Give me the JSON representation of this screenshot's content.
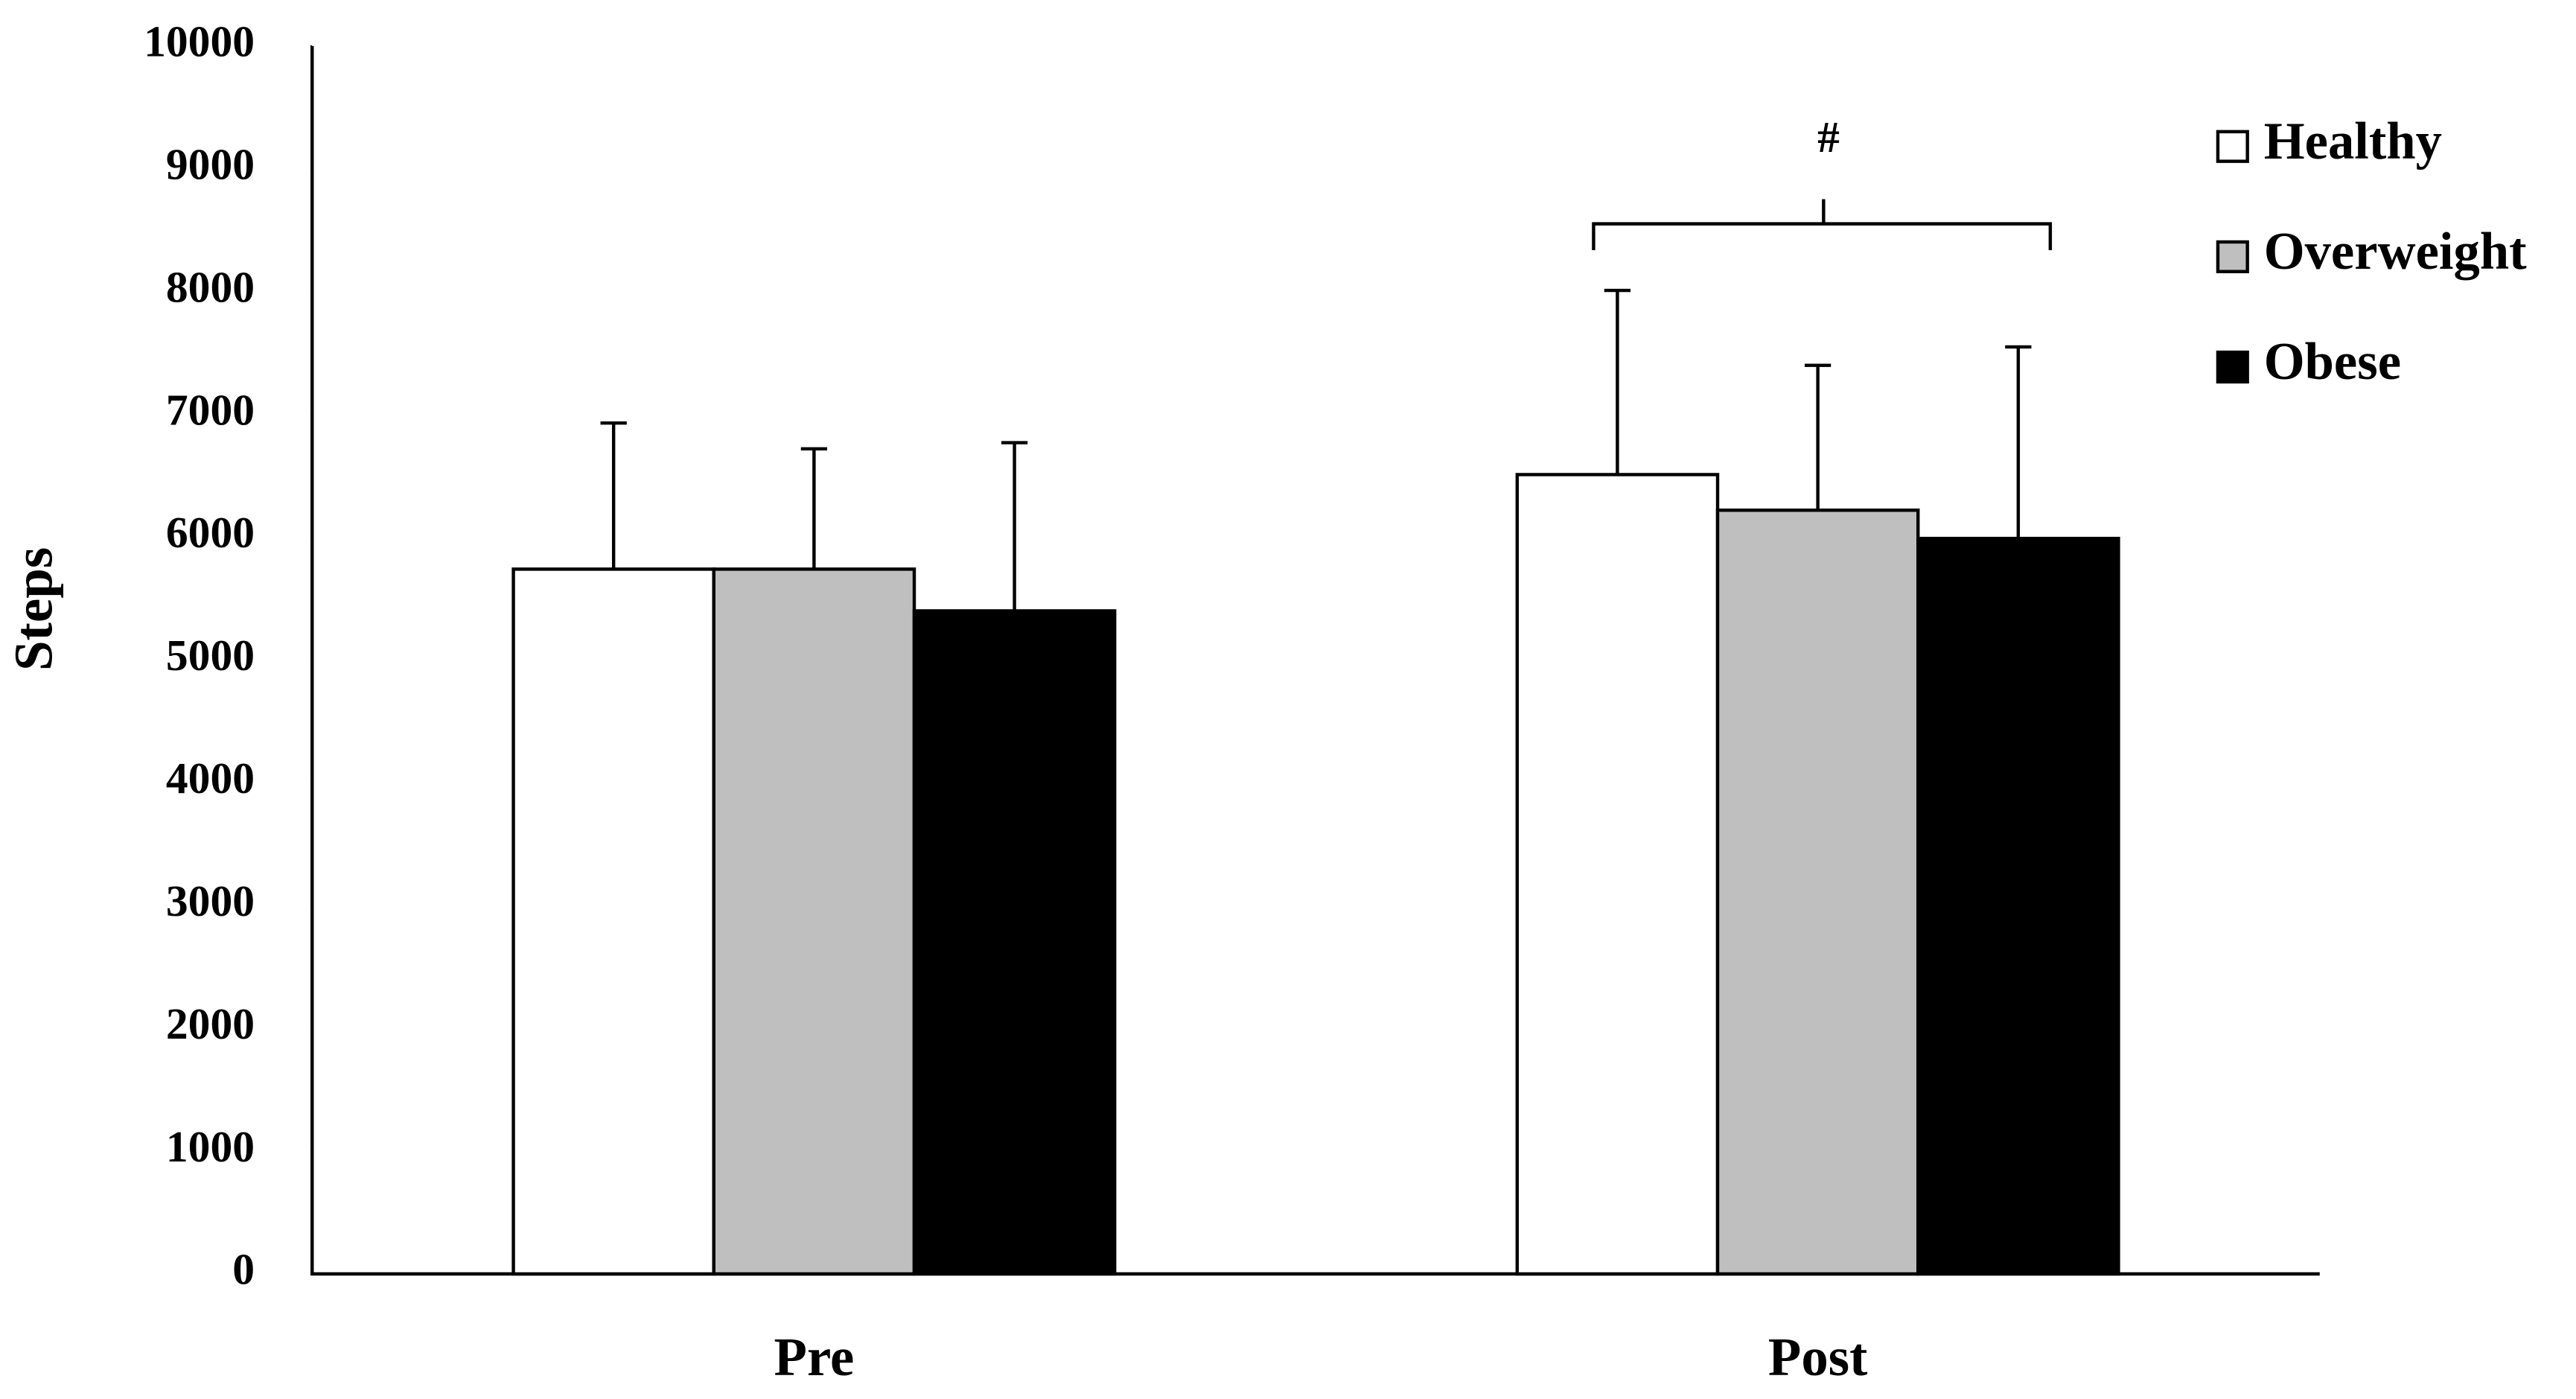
{
  "chart_data": {
    "type": "bar",
    "y_label": "Steps",
    "annotation": "#",
    "categories": [
      "Pre",
      "Post"
    ],
    "series": [
      {
        "name": "Healthy",
        "color": "#ffffff",
        "values": [
          5740,
          6510
        ],
        "errors": [
          1190,
          1500
        ]
      },
      {
        "name": "Overweight",
        "color": "#bfbfbf",
        "values": [
          5740,
          6220
        ],
        "errors": [
          980,
          1180
        ]
      },
      {
        "name": "Obese",
        "color": "#000000",
        "values": [
          5400,
          5990
        ],
        "errors": [
          1370,
          1560
        ]
      }
    ],
    "ylim": [
      0,
      10000
    ],
    "yticks": [
      0,
      1000,
      2000,
      3000,
      4000,
      5000,
      6000,
      7000,
      8000,
      9000,
      10000
    ],
    "grid": false,
    "legend": "top-right"
  }
}
